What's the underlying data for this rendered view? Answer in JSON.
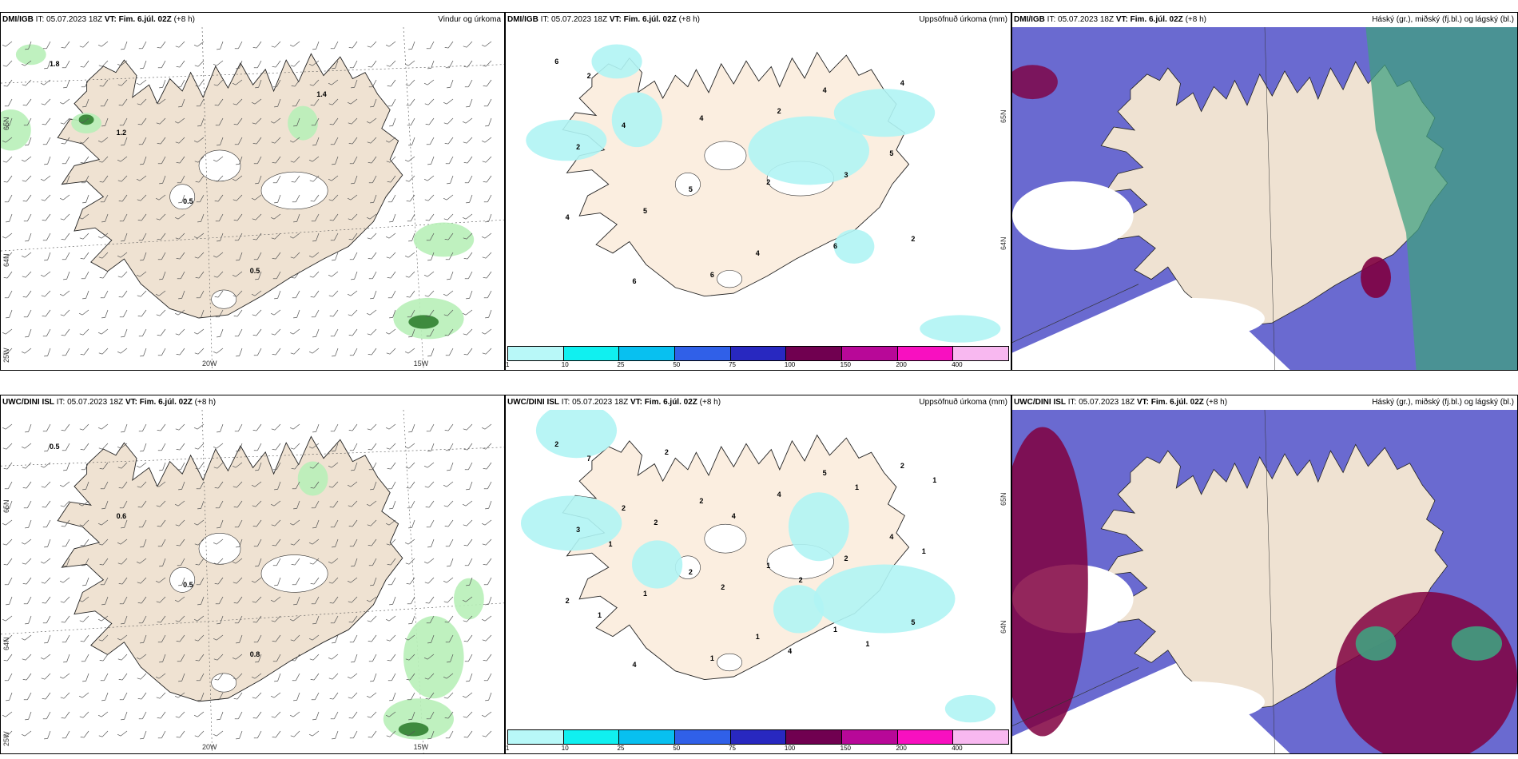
{
  "panels": [
    {
      "id": "p1",
      "model": "DMI/IGB",
      "it_label": "IT:",
      "it": "05.07.2023 18Z",
      "vt_label": "VT:",
      "vt": "Fim. 6.júl. 02Z",
      "lead": "(+8 h)",
      "title": "Vindur og úrkoma",
      "type": "wind",
      "values": [
        "1.8",
        "1.2",
        "0.5",
        "0.5",
        "1.4"
      ],
      "lat_labels": [
        "65N",
        "64N",
        "25W"
      ],
      "lon_labels": [
        "20W",
        "15W"
      ]
    },
    {
      "id": "p2",
      "model": "DMI/IGB",
      "it_label": "IT:",
      "it": "05.07.2023 18Z",
      "vt_label": "VT:",
      "vt": "Fim. 6.júl. 02Z",
      "lead": "(+8 h)",
      "title": "Uppsöfnuð úrkoma (mm)",
      "type": "accum",
      "values": [
        "6",
        "4",
        "5",
        "4",
        "4",
        "5",
        "4",
        "6",
        "4",
        "2",
        "6",
        "4",
        "2",
        "5",
        "6",
        "2",
        "3",
        "2",
        "2"
      ],
      "lat_labels": [
        "65N",
        "64N"
      ]
    },
    {
      "id": "p3",
      "model": "DMI/IGB",
      "it_label": "IT:",
      "it": "05.07.2023 18Z",
      "vt_label": "VT:",
      "vt": "Fim. 6.júl. 02Z",
      "lead": "(+8 h)",
      "title": "Háský (gr.), miðský (fj.bl.) og lágský (bl.)",
      "type": "cloud"
    },
    {
      "id": "p4",
      "model": "UWC/DINI ISL",
      "it_label": "IT:",
      "it": "05.07.2023 18Z",
      "vt_label": "VT:",
      "vt": "Fim. 6.júl. 02Z",
      "lead": "(+8 h)",
      "title": "",
      "type": "wind",
      "values": [
        "0.5",
        "0.6",
        "0.5",
        "0.8"
      ],
      "lat_labels": [
        "65N",
        "64N",
        "25W"
      ],
      "lon_labels": [
        "20W",
        "15W"
      ]
    },
    {
      "id": "p5",
      "model": "UWC/DINI ISL",
      "it_label": "IT:",
      "it": "05.07.2023 18Z",
      "vt_label": "VT:",
      "vt": "Fim. 6.júl. 02Z",
      "lead": "(+8 h)",
      "title": "Uppsöfnuð úrkoma (mm)",
      "type": "accum",
      "values": [
        "2",
        "2",
        "2",
        "1",
        "5",
        "4",
        "2",
        "4",
        "2",
        "1",
        "1",
        "2",
        "3",
        "1",
        "1",
        "4",
        "2",
        "5",
        "7",
        "2",
        "2",
        "4",
        "1",
        "1",
        "1",
        "2",
        "4",
        "2",
        "1",
        "1",
        "1"
      ],
      "lat_labels": [
        "65N",
        "64N"
      ]
    },
    {
      "id": "p6",
      "model": "UWC/DINI ISL",
      "it_label": "IT:",
      "it": "05.07.2023 18Z",
      "vt_label": "VT:",
      "vt": "Fim. 6.júl. 02Z",
      "lead": "(+8 h)",
      "title": "Háský (gr.), miðský (fj.bl.) og lágský (bl.)",
      "type": "cloud"
    }
  ],
  "colorbar": {
    "colors": [
      "#b8f8f8",
      "#10f0f0",
      "#08c0f0",
      "#3060e8",
      "#2828c0",
      "#700050",
      "#b80898",
      "#f810c0",
      "#f8b8f0"
    ],
    "ticks": [
      "1",
      "10",
      "25",
      "50",
      "75",
      "100",
      "150",
      "200",
      "400"
    ]
  },
  "colors": {
    "land": "#efe2d2",
    "land_light": "#fbeee0",
    "precip_light": "#b8f0b8",
    "precip_dark": "#308030",
    "accum": "#b0f4f4",
    "cloud_low": "#5050c8",
    "cloud_mid": "#40a080",
    "cloud_high": "#800040",
    "coast": "#222222"
  }
}
